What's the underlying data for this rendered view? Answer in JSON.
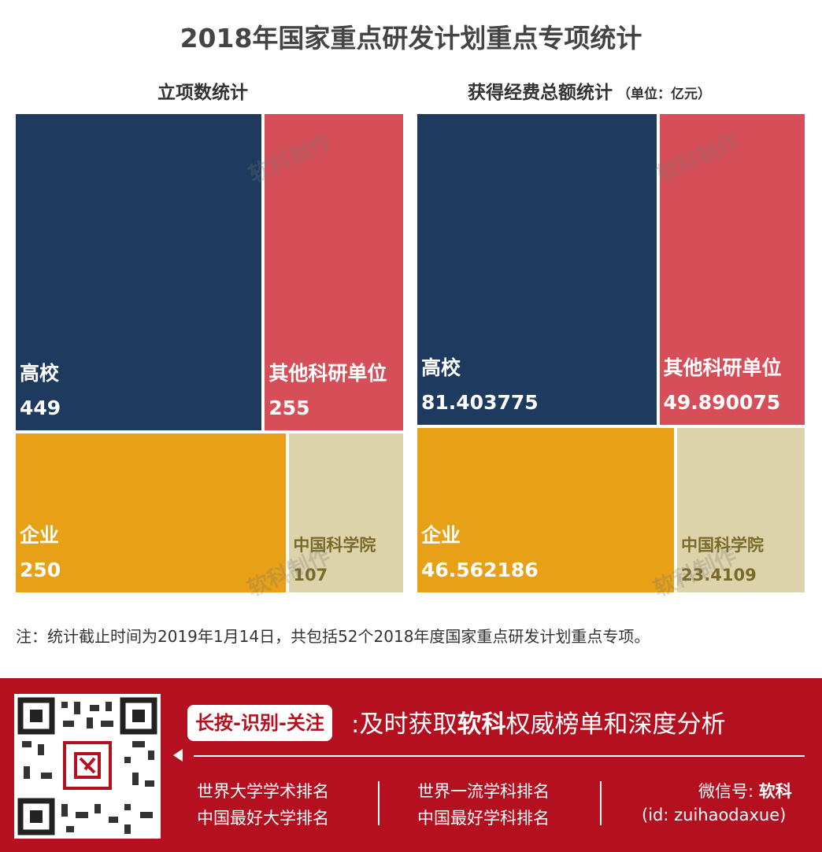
{
  "title": "2018年国家重点研发计划重点专项统计",
  "chart_data": [
    {
      "type": "treemap",
      "title": "立项数统计",
      "unit": "",
      "items": [
        {
          "name": "高校",
          "value": 449,
          "value_label": "449",
          "color": "#1e3a5f"
        },
        {
          "name": "其他科研单位",
          "value": 255,
          "value_label": "255",
          "color": "#d64f58"
        },
        {
          "name": "企业",
          "value": 250,
          "value_label": "250",
          "color": "#e8a016"
        },
        {
          "name": "中国科学院",
          "value": 107,
          "value_label": "107",
          "color": "#ddd3ab"
        }
      ]
    },
    {
      "type": "treemap",
      "title": "获得经费总额统计",
      "unit": "（单位：亿元）",
      "items": [
        {
          "name": "高校",
          "value": 81.403775,
          "value_label": "81.403775",
          "color": "#1e3a5f"
        },
        {
          "name": "其他科研单位",
          "value": 49.890075,
          "value_label": "49.890075",
          "color": "#d64f58"
        },
        {
          "name": "企业",
          "value": 46.562186,
          "value_label": "46.562186",
          "color": "#e8a016"
        },
        {
          "name": "中国科学院",
          "value": 23.4109,
          "value_label": "23.4109",
          "color": "#ddd3ab"
        }
      ]
    }
  ],
  "watermark": "软科制作",
  "note": "注：统计截止时间为2019年1月14日，共包括52个2018年度国家重点研发计划重点专项。",
  "footer": {
    "cta": "长按-识别-关注",
    "slogan_prefix": ":及时获取",
    "slogan_brand": "软科",
    "slogan_suffix": "权威榜单和深度分析",
    "links_col1": [
      "世界大学学术排名",
      "中国最好大学排名"
    ],
    "links_col2": [
      "世界一流学科排名",
      "中国最好学科排名"
    ],
    "wechat_label": "微信号: ",
    "wechat_brand": "软科",
    "wechat_id": "(id: zuihaodaxue)"
  }
}
